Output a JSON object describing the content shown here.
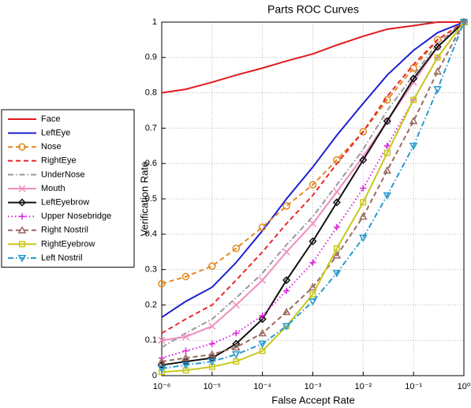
{
  "chart_data": {
    "type": "line",
    "title": "Parts ROC Curves",
    "xlabel": "False Accept Rate",
    "ylabel": "Verification Rate",
    "xscale": "log",
    "grid": true,
    "xlim": [
      1e-06,
      1
    ],
    "ylim": [
      0,
      1
    ],
    "xticks": [
      {
        "value": 1e-06,
        "label": "10⁻⁶"
      },
      {
        "value": 1e-05,
        "label": "10⁻⁵"
      },
      {
        "value": 0.0001,
        "label": "10⁻⁴"
      },
      {
        "value": 0.001,
        "label": "10⁻³"
      },
      {
        "value": 0.01,
        "label": "10⁻²"
      },
      {
        "value": 0.1,
        "label": "10⁻¹"
      },
      {
        "value": 1,
        "label": "10⁰"
      }
    ],
    "yticks": [
      0,
      0.1,
      0.2,
      0.3,
      0.4,
      0.5,
      0.6,
      0.7,
      0.8,
      0.9,
      1
    ],
    "x": [
      1e-06,
      3e-06,
      1e-05,
      3e-05,
      0.0001,
      0.0003,
      0.001,
      0.003,
      0.01,
      0.03,
      0.1,
      0.3,
      1
    ],
    "series": [
      {
        "name": "Face",
        "color": "#e41a1c",
        "dash": "solid",
        "marker": "none",
        "values": [
          0.8,
          0.81,
          0.83,
          0.85,
          0.87,
          0.89,
          0.91,
          0.935,
          0.96,
          0.98,
          0.99,
          1.0,
          1.0
        ]
      },
      {
        "name": "LeftEye",
        "color": "#1f1fd0",
        "dash": "solid",
        "marker": "none",
        "values": [
          0.165,
          0.21,
          0.25,
          0.32,
          0.41,
          0.5,
          0.59,
          0.68,
          0.77,
          0.85,
          0.92,
          0.97,
          1.0
        ]
      },
      {
        "name": "Nose",
        "color": "#e08a1e",
        "dash": "dashed",
        "marker": "circle",
        "values": [
          0.26,
          0.28,
          0.31,
          0.36,
          0.42,
          0.48,
          0.54,
          0.61,
          0.69,
          0.78,
          0.87,
          0.95,
          1.0
        ]
      },
      {
        "name": "RightEye",
        "color": "#e8282a",
        "dash": "dashed",
        "marker": "none",
        "values": [
          0.12,
          0.16,
          0.2,
          0.27,
          0.35,
          0.43,
          0.51,
          0.6,
          0.69,
          0.79,
          0.88,
          0.95,
          1.0
        ]
      },
      {
        "name": "UnderNose",
        "color": "#999999",
        "dash": "dashdot",
        "marker": "none",
        "values": [
          0.08,
          0.12,
          0.16,
          0.22,
          0.29,
          0.37,
          0.45,
          0.54,
          0.64,
          0.75,
          0.85,
          0.94,
          1.0
        ]
      },
      {
        "name": "Mouth",
        "color": "#f08cc0",
        "dash": "solid",
        "marker": "x",
        "values": [
          0.1,
          0.11,
          0.14,
          0.2,
          0.27,
          0.35,
          0.43,
          0.52,
          0.62,
          0.72,
          0.83,
          0.93,
          1.0
        ]
      },
      {
        "name": "LeftEyebrow",
        "color": "#111111",
        "dash": "solid",
        "marker": "diamond",
        "values": [
          0.03,
          0.04,
          0.05,
          0.09,
          0.16,
          0.27,
          0.38,
          0.49,
          0.61,
          0.72,
          0.84,
          0.93,
          1.0
        ]
      },
      {
        "name": "Upper Nosebridge",
        "color": "#e020e0",
        "dash": "dotted",
        "marker": "plus",
        "values": [
          0.05,
          0.07,
          0.09,
          0.12,
          0.17,
          0.24,
          0.32,
          0.42,
          0.53,
          0.65,
          0.78,
          0.9,
          1.0
        ]
      },
      {
        "name": "Right Nostril",
        "color": "#9a6a60",
        "dash": "dashed",
        "marker": "triangle-up",
        "values": [
          0.04,
          0.05,
          0.06,
          0.08,
          0.12,
          0.18,
          0.25,
          0.34,
          0.45,
          0.58,
          0.72,
          0.86,
          1.0
        ]
      },
      {
        "name": "RightEyebrow",
        "color": "#c8c81a",
        "dash": "solid",
        "marker": "square",
        "values": [
          0.01,
          0.015,
          0.025,
          0.04,
          0.07,
          0.14,
          0.23,
          0.36,
          0.49,
          0.63,
          0.78,
          0.9,
          1.0
        ]
      },
      {
        "name": "Left Nostril",
        "color": "#2a9ad0",
        "dash": "dashdot",
        "marker": "triangle-down",
        "values": [
          0.02,
          0.03,
          0.04,
          0.06,
          0.09,
          0.14,
          0.21,
          0.29,
          0.39,
          0.51,
          0.65,
          0.81,
          1.0
        ]
      }
    ]
  }
}
